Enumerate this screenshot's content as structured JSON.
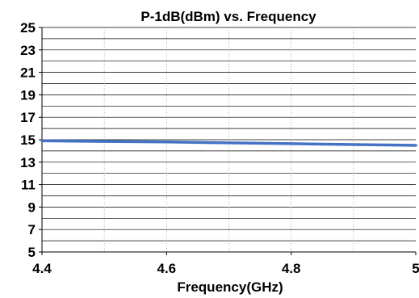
{
  "chart_data": {
    "type": "line",
    "title": "P-1dB(dBm) vs. Frequency",
    "xlabel": "Frequency(GHz)",
    "ylabel": "",
    "xlim": [
      4.4,
      5.0
    ],
    "ylim": [
      5,
      25
    ],
    "x_ticks": [
      "4.4",
      "4.6",
      "4.8",
      "5"
    ],
    "y_ticks": [
      "5",
      "7",
      "9",
      "11",
      "13",
      "15",
      "17",
      "19",
      "21",
      "23",
      "25"
    ],
    "grid": true,
    "series": [
      {
        "color": "#4472C4",
        "x": [
          4.4,
          4.5,
          4.6,
          4.7,
          4.8,
          4.9,
          5.0
        ],
        "y": [
          14.9,
          14.85,
          14.8,
          14.72,
          14.65,
          14.57,
          14.5
        ]
      }
    ]
  }
}
